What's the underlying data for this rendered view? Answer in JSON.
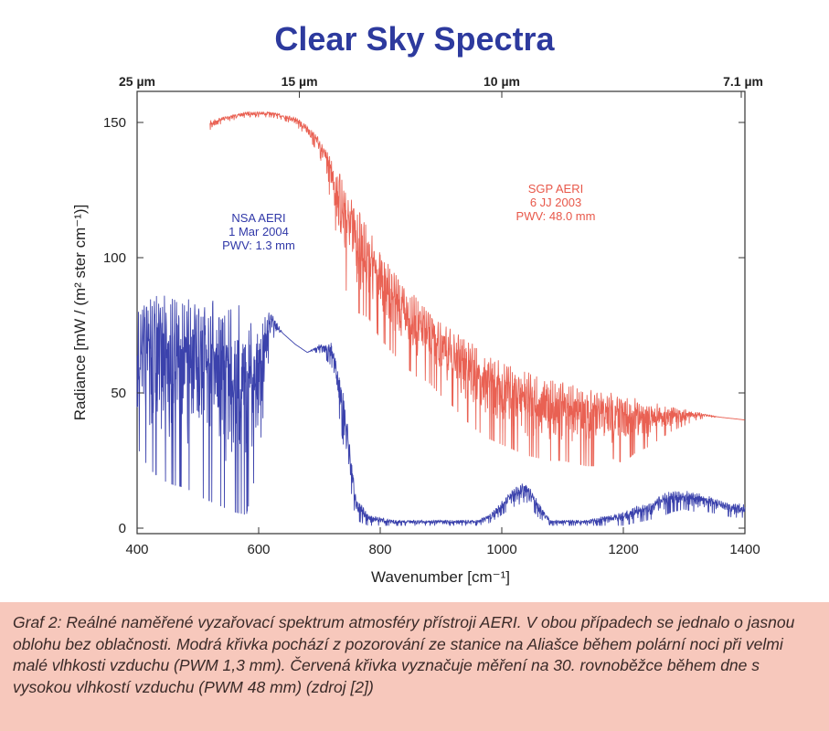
{
  "chart_data": {
    "type": "line",
    "title": "Clear Sky Spectra",
    "xlabel": "Wavenumber [cm⁻¹]",
    "ylabel": "Radiance [mW / (m² ster cm⁻¹)]",
    "xlim": [
      400,
      1400
    ],
    "ylim": [
      -2,
      155
    ],
    "x_ticks": [
      400,
      600,
      800,
      1000,
      1200,
      1400
    ],
    "y_ticks": [
      0,
      50,
      100,
      150
    ],
    "top_axis": {
      "label_unit": "µm",
      "ticks": [
        {
          "label": "25 µm",
          "wavenumber": 400
        },
        {
          "label": "15 µm",
          "wavenumber": 667
        },
        {
          "label": "10 µm",
          "wavenumber": 1000
        },
        {
          "label": "7.1 µm",
          "wavenumber": 1408
        }
      ]
    },
    "grid": false,
    "series": [
      {
        "name": "SGP AERI",
        "color": "#e8584a",
        "annotation": [
          "SGP AERI",
          "6 JJ 2003",
          "PWV: 48.0 mm"
        ],
        "envelope": {
          "x": [
            520,
            540,
            560,
            580,
            600,
            620,
            640,
            660,
            680,
            700,
            720,
            740,
            760,
            780,
            800,
            820,
            840,
            860,
            880,
            900,
            920,
            940,
            960,
            980,
            1000,
            1020,
            1040,
            1060,
            1080,
            1100,
            1120,
            1140,
            1160,
            1180,
            1200,
            1220,
            1240,
            1260,
            1280,
            1300,
            1320,
            1340,
            1360,
            1380,
            1400
          ],
          "upper": [
            151,
            152,
            153,
            154,
            154,
            154,
            153,
            152,
            149,
            144,
            137,
            130,
            120,
            111,
            103,
            96,
            90,
            85,
            80,
            76,
            73,
            70,
            67,
            64,
            62,
            60,
            58,
            56,
            55,
            54,
            53,
            52,
            51,
            50,
            49,
            48,
            47,
            46,
            45,
            44,
            43,
            42,
            41,
            40.5,
            40
          ],
          "lower": [
            146,
            150,
            151,
            152,
            152,
            152,
            151,
            149,
            145,
            138,
            120,
            90,
            80,
            78,
            70,
            65,
            60,
            56,
            54,
            49,
            45,
            40,
            36,
            33,
            31,
            29,
            27,
            26,
            25,
            25,
            24,
            23,
            23,
            26,
            24,
            28,
            30,
            33,
            36,
            38,
            40,
            41,
            41,
            40.5,
            40
          ]
        }
      },
      {
        "name": "NSA AERI",
        "color": "#3038a8",
        "annotation": [
          "NSA AERI",
          "1 Mar 2004",
          "PWV: 1.3 mm"
        ],
        "envelope": {
          "x": [
            400,
            420,
            440,
            460,
            480,
            500,
            520,
            540,
            560,
            580,
            600,
            620,
            640,
            660,
            680,
            700,
            720,
            740,
            760,
            780,
            800,
            820,
            840,
            860,
            880,
            900,
            920,
            940,
            960,
            980,
            1000,
            1020,
            1040,
            1060,
            1080,
            1100,
            1120,
            1140,
            1160,
            1180,
            1200,
            1220,
            1240,
            1260,
            1280,
            1300,
            1320,
            1340,
            1360,
            1380,
            1400
          ],
          "upper": [
            80,
            86,
            86,
            86,
            85,
            85,
            85,
            84,
            84,
            80,
            78,
            80,
            72,
            68,
            65,
            68,
            69,
            50,
            12,
            5,
            4,
            3,
            3,
            3,
            3,
            3,
            3,
            3,
            3,
            5,
            10,
            15,
            17,
            10,
            3,
            3,
            3,
            3,
            4,
            5,
            6,
            8,
            9,
            12,
            14,
            14,
            13,
            12,
            10,
            9,
            9
          ],
          "lower": [
            30,
            22,
            18,
            16,
            15,
            12,
            10,
            8,
            6,
            5,
            25,
            70,
            72,
            68,
            65,
            65,
            60,
            30,
            3,
            1,
            1,
            1,
            1,
            1,
            1,
            1,
            1,
            1,
            1,
            2,
            5,
            8,
            10,
            4,
            1,
            1,
            1,
            1,
            1,
            1,
            1,
            2,
            3,
            4,
            6,
            7,
            6,
            6,
            5,
            4,
            4
          ]
        }
      }
    ]
  },
  "caption": "Graf 2: Reálné naměřené vyzařovací spektrum atmosféry přístroji AERI. V obou případech se jednalo o jasnou oblohu bez oblačnosti. Modrá křivka pochází z pozorování ze stanice na Aliašce během polární noci při velmi malé vlhkosti vzduchu (PWM 1,3 mm). Červená křivka vyznačuje měření na 30. rovnoběžce během dne s vysokou vlhkostí vzduchu (PWM 48 mm) (zdroj [2])"
}
